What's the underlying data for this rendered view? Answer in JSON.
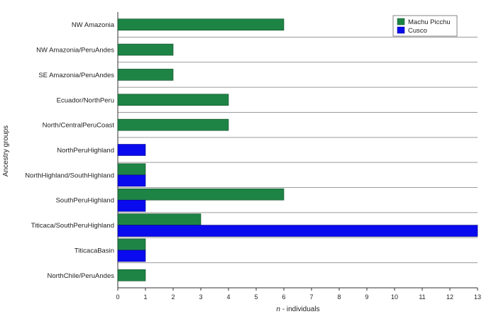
{
  "chart_data": {
    "type": "bar",
    "orientation": "horizontal",
    "categories": [
      "NW Amazonia",
      "NW Amazonia/PeruAndes",
      "SE Amazonia/PeruAndes",
      "Ecuador/NorthPeru",
      "North/CentralPeruCoast",
      "NorthPeruHighland",
      "NorthHighland/SouthHighland",
      "SouthPeruHighland",
      "Titicaca/SouthPeruHighland",
      "TiticacaBasin",
      "NorthChile/PeruAndes"
    ],
    "series": [
      {
        "name": "Machu Picchu",
        "color": "#1e8446",
        "values": [
          6,
          2,
          2,
          4,
          4,
          0,
          1,
          6,
          3,
          1,
          1
        ]
      },
      {
        "name": "Cusco",
        "color": "#0a0aef",
        "values": [
          0,
          0,
          0,
          0,
          0,
          1,
          1,
          1,
          13,
          1,
          0
        ]
      }
    ],
    "xlabel_prefix": "n",
    "xlabel_suffix": " - individuals",
    "ylabel": "Ancestry groups",
    "xlim": [
      0,
      13
    ],
    "xticks": [
      "0",
      "1",
      "2",
      "3",
      "4",
      "5",
      "6",
      "7",
      "8",
      "9",
      "10",
      "11",
      "12",
      "13"
    ],
    "grid": "horizontal separators between groups",
    "legend_position": "top-right"
  }
}
